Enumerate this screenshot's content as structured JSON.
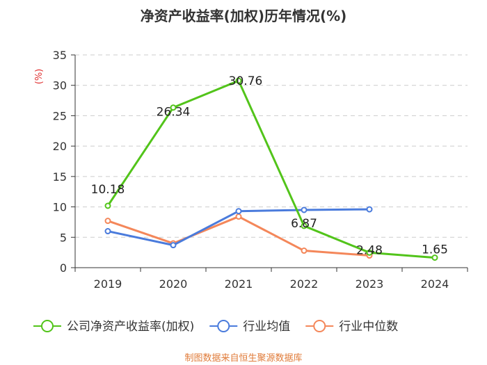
{
  "chart_data": {
    "type": "line",
    "title": "净资产收益率(加权)历年情况(%)",
    "ylabel": "(%)",
    "xlabel": "",
    "categories": [
      "2019",
      "2020",
      "2021",
      "2022",
      "2023",
      "2024"
    ],
    "ylim": [
      0,
      35
    ],
    "yticks": [
      0,
      5,
      10,
      15,
      20,
      25,
      30,
      35
    ],
    "grid": true,
    "legend_position": "bottom",
    "series": [
      {
        "name": "公司净资产收益率(加权)",
        "color": "#52c41a",
        "values": [
          10.18,
          26.34,
          30.76,
          6.87,
          2.48,
          1.65
        ],
        "labels": [
          "10.18",
          "26.34",
          "30.76",
          "6.87",
          "2.48",
          "1.65"
        ]
      },
      {
        "name": "行业均值",
        "color": "#4a7bdc",
        "values": [
          6.0,
          3.7,
          9.3,
          9.5,
          9.6,
          null
        ]
      },
      {
        "name": "行业中位数",
        "color": "#f4875a",
        "values": [
          7.7,
          4.0,
          8.4,
          2.8,
          2.0,
          null
        ]
      }
    ],
    "source": "制图数据来自恒生聚源数据库"
  }
}
